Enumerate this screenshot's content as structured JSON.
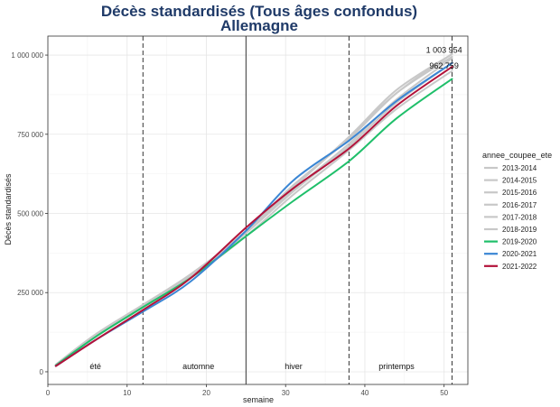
{
  "chart_data": {
    "type": "line",
    "title": "Décès standardisés (Tous âges confondus)",
    "subtitle": "Allemagne",
    "xlabel": "semaine",
    "ylabel": "Décès standardisés",
    "xlim": [
      0,
      53
    ],
    "ylim": [
      -40000,
      1060000
    ],
    "x_ticks": [
      0,
      10,
      20,
      30,
      40,
      50
    ],
    "x_tick_labels": [
      "0",
      "10",
      "20",
      "30",
      "40",
      "50"
    ],
    "y_ticks": [
      0,
      250000,
      500000,
      750000,
      1000000
    ],
    "y_tick_labels": [
      "0",
      "250 000",
      "500 000",
      "750 000",
      "1 000 000"
    ],
    "grid": true,
    "legend_title": "annee_coupee_ete",
    "legend_position": "right",
    "vlines": [
      {
        "x": 12,
        "style": "dashed"
      },
      {
        "x": 25,
        "style": "solid"
      },
      {
        "x": 38,
        "style": "dashed"
      },
      {
        "x": 51,
        "style": "dashed"
      }
    ],
    "season_labels": [
      {
        "label": "été",
        "x": 6
      },
      {
        "label": "automne",
        "x": 19
      },
      {
        "label": "hiver",
        "x": 31
      },
      {
        "label": "printemps",
        "x": 44
      }
    ],
    "annotations": [
      {
        "text": "1 003 954",
        "x": 50,
        "y": 1003954
      },
      {
        "text": "962 759",
        "x": 50,
        "y": 962759
      }
    ],
    "series": [
      {
        "name": "2013-2014",
        "color": "#c8c8c8",
        "x": [
          1,
          6,
          12,
          18,
          25,
          31,
          38,
          44,
          51
        ],
        "values": [
          20000,
          110000,
          205000,
          300000,
          440000,
          575000,
          720000,
          860000,
          990000
        ]
      },
      {
        "name": "2014-2015",
        "color": "#c8c8c8",
        "x": [
          1,
          6,
          12,
          18,
          25,
          31,
          38,
          44,
          51
        ],
        "values": [
          22000,
          115000,
          210000,
          305000,
          445000,
          590000,
          735000,
          880000,
          1003954
        ]
      },
      {
        "name": "2015-2016",
        "color": "#c8c8c8",
        "x": [
          1,
          6,
          12,
          18,
          25,
          31,
          38,
          44,
          51
        ],
        "values": [
          21000,
          112000,
          208000,
          300000,
          438000,
          570000,
          712000,
          850000,
          975000
        ]
      },
      {
        "name": "2016-2017",
        "color": "#c8c8c8",
        "x": [
          1,
          6,
          12,
          18,
          25,
          31,
          38,
          44,
          51
        ],
        "values": [
          23000,
          118000,
          212000,
          308000,
          442000,
          585000,
          742000,
          890000,
          1003000
        ]
      },
      {
        "name": "2017-2018",
        "color": "#c8c8c8",
        "x": [
          1,
          6,
          12,
          18,
          25,
          31,
          38,
          44,
          51
        ],
        "values": [
          21000,
          113000,
          208000,
          302000,
          440000,
          582000,
          740000,
          880000,
          995000
        ]
      },
      {
        "name": "2018-2019",
        "color": "#c8c8c8",
        "x": [
          1,
          6,
          12,
          18,
          25,
          31,
          38,
          44,
          51
        ],
        "values": [
          20000,
          110000,
          203000,
          296000,
          428000,
          560000,
          700000,
          830000,
          950000
        ]
      },
      {
        "name": "2019-2020",
        "color": "#1fbf6a",
        "x": [
          1,
          6,
          12,
          18,
          25,
          31,
          38,
          44,
          51
        ],
        "values": [
          20000,
          110000,
          204000,
          296000,
          428000,
          540000,
          665000,
          800000,
          925000
        ]
      },
      {
        "name": "2020-2021",
        "color": "#3a86d4",
        "x": [
          1,
          6,
          12,
          18,
          25,
          31,
          38,
          44,
          51
        ],
        "values": [
          18000,
          100000,
          190000,
          285000,
          445000,
          605000,
          730000,
          855000,
          975000
        ]
      },
      {
        "name": "2021-2022",
        "color": "#b3123a",
        "x": [
          1,
          6,
          12,
          18,
          25,
          31,
          38,
          44,
          51
        ],
        "values": [
          18000,
          100000,
          195000,
          295000,
          455000,
          580000,
          705000,
          840000,
          962759
        ]
      }
    ]
  }
}
